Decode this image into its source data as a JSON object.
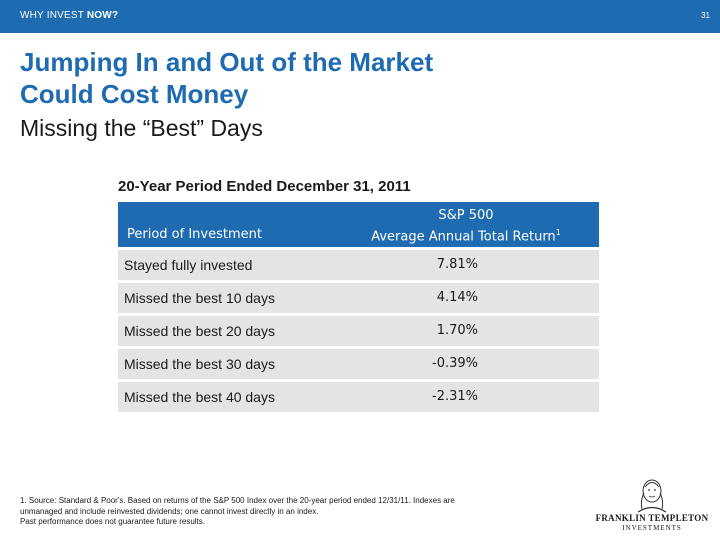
{
  "header": {
    "section_prefix": "WHY INVEST ",
    "section_emph": "NOW?",
    "page_number": "31"
  },
  "slide": {
    "title_line1": "Jumping In and Out of the Market",
    "title_line2": "Could Cost Money",
    "subtitle": "Missing the “Best” Days"
  },
  "table": {
    "title": "20-Year Period Ended December 31, 2011",
    "col1_header": "Period of Investment",
    "col2_header_line1": "S&P 500",
    "col2_header_line2": "Average Annual Total Return",
    "col2_header_sup": "1",
    "rows": [
      {
        "label": "Stayed fully invested",
        "value": "7.81%"
      },
      {
        "label": "Missed the best 10 days",
        "value": "4.14%"
      },
      {
        "label": "Missed the best 20 days",
        "value": "1.70%"
      },
      {
        "label": "Missed the best 30 days",
        "value": "-0.39%"
      },
      {
        "label": "Missed the best 40 days",
        "value": "-2.31%"
      }
    ]
  },
  "footnote": {
    "line1": "1. Source: Standard & Poor's. Based on returns of the S&P 500 Index over the 20-year period ended 12/31/11. Indexes are",
    "line2": "unmanaged and include reinvested dividends; one cannot invest directly in an index.",
    "line3": "Past performance does not guarantee future results."
  },
  "logo": {
    "name": "FRANKLIN TEMPLETON",
    "sub": "INVESTMENTS"
  },
  "colors": {
    "brand_blue": "#1e6bb2",
    "row_gray": "#e4e4e4"
  }
}
